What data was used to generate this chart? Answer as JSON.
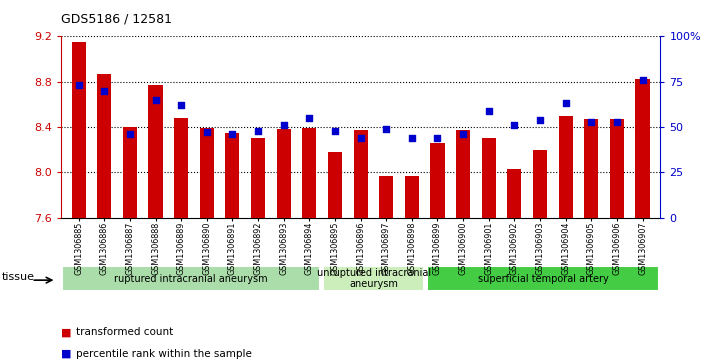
{
  "title": "GDS5186 / 12581",
  "samples": [
    "GSM1306885",
    "GSM1306886",
    "GSM1306887",
    "GSM1306888",
    "GSM1306889",
    "GSM1306890",
    "GSM1306891",
    "GSM1306892",
    "GSM1306893",
    "GSM1306894",
    "GSM1306895",
    "GSM1306896",
    "GSM1306897",
    "GSM1306898",
    "GSM1306899",
    "GSM1306900",
    "GSM1306901",
    "GSM1306902",
    "GSM1306903",
    "GSM1306904",
    "GSM1306905",
    "GSM1306906",
    "GSM1306907"
  ],
  "bar_values": [
    9.15,
    8.87,
    8.4,
    8.77,
    8.48,
    8.39,
    8.35,
    8.3,
    8.38,
    8.39,
    8.18,
    8.37,
    7.97,
    7.97,
    8.26,
    8.37,
    8.3,
    8.03,
    8.2,
    8.5,
    8.47,
    8.47,
    8.82
  ],
  "percentile_values": [
    73,
    70,
    46,
    65,
    62,
    47,
    46,
    48,
    51,
    55,
    48,
    44,
    49,
    44,
    44,
    46,
    59,
    51,
    54,
    63,
    53,
    53,
    76
  ],
  "ylim_left": [
    7.6,
    9.2
  ],
  "ylim_right": [
    0,
    100
  ],
  "yticks_left": [
    7.6,
    8.0,
    8.4,
    8.8,
    9.2
  ],
  "yticks_right": [
    0,
    25,
    50,
    75,
    100
  ],
  "yticklabels_right": [
    "0",
    "25",
    "50",
    "75",
    "100%"
  ],
  "bar_color": "#cc0000",
  "dot_color": "#0000cc",
  "axis_color_left": "#cc0000",
  "axis_color_right": "#0000cc",
  "tissue_groups": [
    {
      "label": "ruptured intracranial aneurysm",
      "start": 0,
      "end": 10,
      "color": "#aaddaa"
    },
    {
      "label": "unruptured intracranial\naneurysm",
      "start": 10,
      "end": 14,
      "color": "#cceebb"
    },
    {
      "label": "superficial temporal artery",
      "start": 14,
      "end": 23,
      "color": "#44cc44"
    }
  ],
  "tissue_label": "tissue",
  "legend_bar_label": "transformed count",
  "legend_dot_label": "percentile rank within the sample",
  "bg_color": "#ffffff",
  "tick_area_bg": "#d8d8d8"
}
